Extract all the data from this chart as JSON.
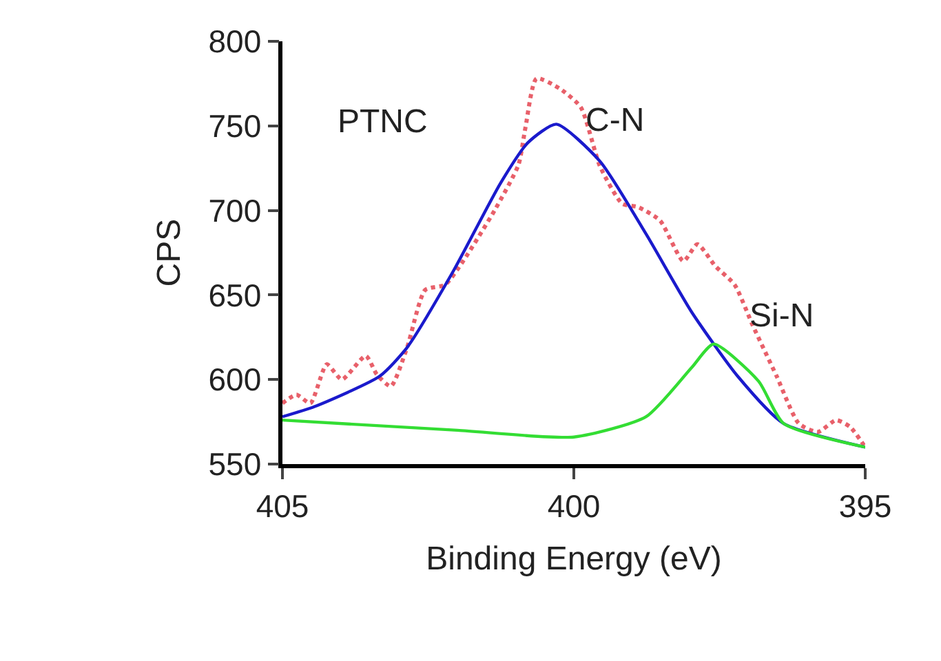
{
  "chart_data": {
    "type": "line",
    "xlabel": "Binding Energy (eV)",
    "ylabel": "CPS",
    "xlim": [
      405,
      395
    ],
    "xticks": [
      405,
      400,
      395
    ],
    "ylim": [
      550,
      800
    ],
    "yticks": [
      550,
      600,
      650,
      700,
      750,
      800
    ],
    "marker": "none",
    "annotations": [
      "PTNC",
      "C-N",
      "Si-N"
    ],
    "series": [
      {
        "color": "#e8606a",
        "line_style": "dotted",
        "x": [
          405,
          404.76,
          404.52,
          404.24,
          403.98,
          403.57,
          403.38,
          403.14,
          402.86,
          402.55,
          402.21,
          401.9,
          401.36,
          400.95,
          400.83,
          400.64,
          400.24,
          399.88,
          399.55,
          399.17,
          398.9,
          398.52,
          398.12,
          397.88,
          397.57,
          397.24,
          396.93,
          396.52,
          396.14,
          395.81,
          395.5,
          395.26,
          395
        ],
        "values": [
          586,
          591,
          586,
          609,
          600,
          614,
          603,
          596,
          619,
          653,
          656,
          670,
          700,
          727,
          749,
          778,
          772,
          761,
          726,
          704,
          702,
          694,
          670,
          680,
          667,
          656,
          632,
          602,
          574,
          569,
          576,
          572,
          560
        ]
      },
      {
        "color": "#1a1acc",
        "line_style": "solid",
        "x": [
          405,
          404.45,
          403.33,
          402.86,
          402.07,
          401.26,
          400.79,
          400.3,
          399.55,
          398.76,
          397.98,
          397.19,
          396.4,
          395
        ],
        "values": [
          578,
          584,
          602,
          619,
          664,
          716,
          740,
          751,
          729,
          686,
          640,
          602,
          574,
          560
        ]
      },
      {
        "color": "#33dd33",
        "line_style": "solid",
        "x": [
          405,
          402,
          400,
          398.76,
          397.98,
          397.6,
          396.83,
          396.4,
          395
        ],
        "values": [
          576,
          570,
          566,
          578,
          607,
          621,
          599,
          574,
          560
        ]
      }
    ]
  }
}
